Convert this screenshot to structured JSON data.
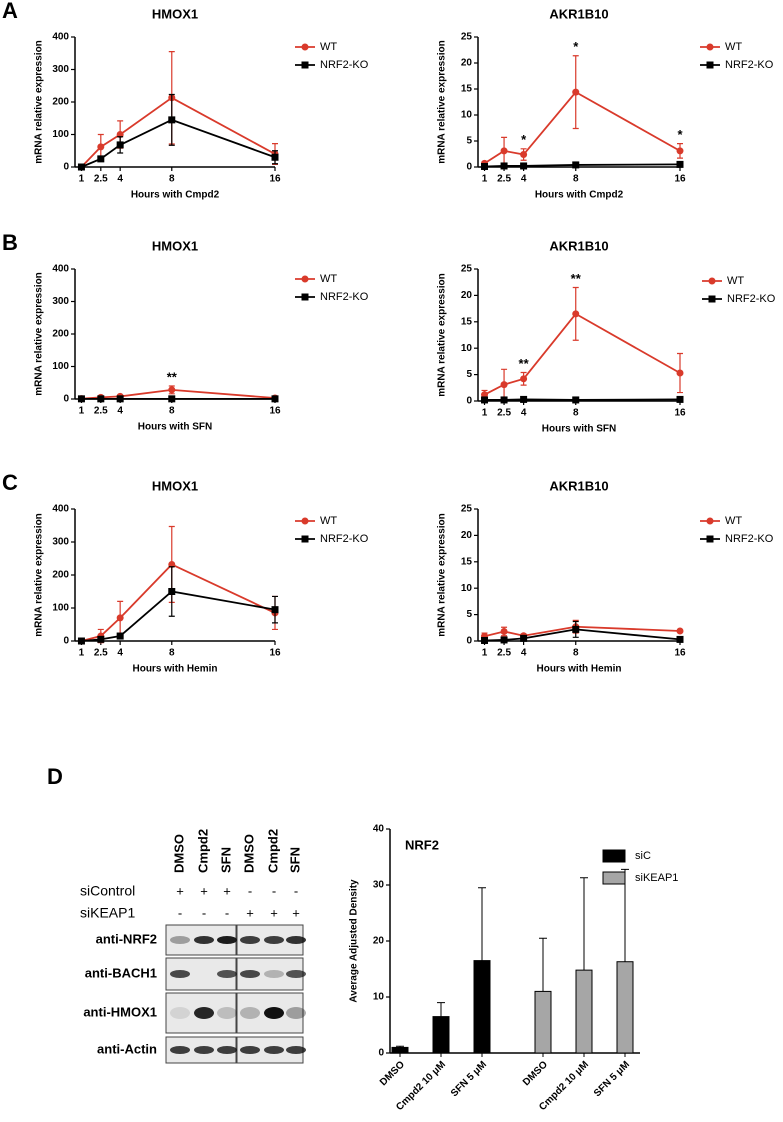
{
  "panel_labels": [
    "A",
    "B",
    "C",
    "D"
  ],
  "blot": {
    "lanes": [
      "DMSO",
      "Cmpd2",
      "SFN",
      "DMSO",
      "Cmpd2",
      "SFN"
    ],
    "conditions": [
      {
        "name": "siControl",
        "signs": [
          "+",
          "+",
          "+",
          "-",
          "-",
          "-"
        ]
      },
      {
        "name": "siKEAP1",
        "signs": [
          "-",
          "-",
          "-",
          "+",
          "+",
          "+"
        ]
      }
    ],
    "antibodies": [
      "anti-NRF2",
      "anti-BACH1",
      "anti-HMOX1",
      "anti-Actin"
    ]
  },
  "chart_data": [
    {
      "type": "line",
      "title": "HMOX1",
      "x_label": "Hours with Cmpd2",
      "y_label": "mRNA relative expression",
      "x": [
        1,
        2.5,
        4,
        8,
        16
      ],
      "xlim": [
        0.5,
        16
      ],
      "xticks": [
        1,
        2.5,
        4,
        8,
        16
      ],
      "ylim": [
        0,
        400
      ],
      "yticks": [
        0,
        100,
        200,
        300,
        400
      ],
      "series": [
        {
          "name": "WT",
          "color": "#d93a2b",
          "marker": "circle",
          "values": [
            0,
            62,
            100,
            213,
            40
          ],
          "errors": [
            5,
            38,
            42,
            142,
            32
          ]
        },
        {
          "name": "NRF2-KO",
          "color": "#000000",
          "marker": "square",
          "values": [
            0,
            25,
            68,
            145,
            30
          ],
          "errors": [
            2,
            5,
            25,
            78,
            20
          ]
        }
      ],
      "annotations": []
    },
    {
      "type": "line",
      "title": "AKR1B10",
      "x_label": "Hours with Cmpd2",
      "y_label": "mRNA relative expression",
      "x": [
        1,
        2.5,
        4,
        8,
        16
      ],
      "xlim": [
        0.5,
        16
      ],
      "xticks": [
        1,
        2.5,
        4,
        8,
        16
      ],
      "ylim": [
        0,
        25
      ],
      "yticks": [
        0,
        5,
        10,
        15,
        20,
        25
      ],
      "series": [
        {
          "name": "WT",
          "color": "#d93a2b",
          "marker": "circle",
          "values": [
            0.7,
            3.1,
            2.4,
            14.4,
            3.1
          ],
          "errors": [
            0.3,
            2.6,
            1.1,
            7,
            1.4
          ]
        },
        {
          "name": "NRF2-KO",
          "color": "#000000",
          "marker": "square",
          "values": [
            0.1,
            0.2,
            0.2,
            0.4,
            0.5
          ],
          "errors": [
            0.05,
            0.1,
            0.1,
            0.2,
            0.2
          ]
        }
      ],
      "annotations": [
        {
          "text": "*",
          "x": 4
        },
        {
          "text": "*",
          "x": 8
        },
        {
          "text": "*",
          "x": 16
        }
      ]
    },
    {
      "type": "line",
      "title": "HMOX1",
      "x_label": "Hours with SFN",
      "y_label": "mRNA relative expression",
      "x": [
        1,
        2.5,
        4,
        8,
        16
      ],
      "xlim": [
        0.5,
        16
      ],
      "xticks": [
        1,
        2.5,
        4,
        8,
        16
      ],
      "ylim": [
        0,
        400
      ],
      "yticks": [
        0,
        100,
        200,
        300,
        400
      ],
      "series": [
        {
          "name": "WT",
          "color": "#d93a2b",
          "marker": "circle",
          "values": [
            1,
            5,
            8,
            28,
            3
          ],
          "errors": [
            1,
            3,
            4,
            12,
            2
          ]
        },
        {
          "name": "NRF2-KO",
          "color": "#000000",
          "marker": "square",
          "values": [
            0.5,
            0.5,
            0.5,
            0.5,
            0.5
          ],
          "errors": [
            0.2,
            0.2,
            0.2,
            0.2,
            0.2
          ]
        }
      ],
      "annotations": [
        {
          "text": "**",
          "x": 8
        }
      ]
    },
    {
      "type": "line",
      "title": "AKR1B10",
      "x_label": "Hours with SFN",
      "y_label": "mRNA relative expression",
      "x": [
        1,
        2.5,
        4,
        8,
        16
      ],
      "xlim": [
        0.5,
        16
      ],
      "xticks": [
        1,
        2.5,
        4,
        8,
        16
      ],
      "ylim": [
        0,
        25
      ],
      "yticks": [
        0,
        5,
        10,
        15,
        20,
        25
      ],
      "series": [
        {
          "name": "WT",
          "color": "#d93a2b",
          "marker": "circle",
          "values": [
            1.2,
            3.1,
            4.2,
            16.5,
            5.3
          ],
          "errors": [
            0.8,
            2.9,
            1.2,
            5,
            3.7
          ]
        },
        {
          "name": "NRF2-KO",
          "color": "#000000",
          "marker": "square",
          "values": [
            0.2,
            0.2,
            0.3,
            0.2,
            0.3
          ],
          "errors": [
            0.1,
            0.1,
            0.1,
            0.1,
            0.1
          ]
        }
      ],
      "annotations": [
        {
          "text": "**",
          "x": 4
        },
        {
          "text": "**",
          "x": 8
        }
      ]
    },
    {
      "type": "line",
      "title": "HMOX1",
      "x_label": "Hours with Hemin",
      "y_label": "mRNA relative expression",
      "x": [
        1,
        2.5,
        4,
        8,
        16
      ],
      "xlim": [
        0.5,
        16
      ],
      "xticks": [
        1,
        2.5,
        4,
        8,
        16
      ],
      "ylim": [
        0,
        400
      ],
      "yticks": [
        0,
        100,
        200,
        300,
        400
      ],
      "series": [
        {
          "name": "WT",
          "color": "#d93a2b",
          "marker": "circle",
          "values": [
            0,
            15,
            70,
            232,
            85
          ],
          "errors": [
            3,
            20,
            50,
            115,
            50
          ]
        },
        {
          "name": "NRF2-KO",
          "color": "#000000",
          "marker": "square",
          "values": [
            0,
            5,
            15,
            150,
            95
          ],
          "errors": [
            2,
            5,
            8,
            75,
            40
          ]
        }
      ],
      "annotations": []
    },
    {
      "type": "line",
      "title": "AKR1B10",
      "x_label": "Hours with Hemin",
      "y_label": "mRNA relative expression",
      "x": [
        1,
        2.5,
        4,
        8,
        16
      ],
      "xlim": [
        0.5,
        16
      ],
      "xticks": [
        1,
        2.5,
        4,
        8,
        16
      ],
      "ylim": [
        0,
        25
      ],
      "yticks": [
        0,
        5,
        10,
        15,
        20,
        25
      ],
      "series": [
        {
          "name": "WT",
          "color": "#d93a2b",
          "marker": "circle",
          "values": [
            0.9,
            1.8,
            1.0,
            2.7,
            1.9
          ],
          "errors": [
            0.6,
            0.8,
            0.3,
            1.2,
            0.2
          ]
        },
        {
          "name": "NRF2-KO",
          "color": "#000000",
          "marker": "square",
          "values": [
            0.1,
            0.2,
            0.5,
            2.2,
            0.3
          ],
          "errors": [
            0.1,
            0.3,
            0.2,
            1.5,
            0.2
          ]
        }
      ],
      "annotations": []
    },
    {
      "type": "bar",
      "title": "NRF2",
      "y_label": "Average Adjusted Density",
      "categories": [
        "DMSO",
        "Cmpd2 10 μM",
        "SFN 5 μM"
      ],
      "ylim": [
        0,
        40
      ],
      "yticks": [
        0,
        10,
        20,
        30,
        40
      ],
      "series": [
        {
          "name": "siC",
          "color": "#000000",
          "values": [
            1,
            6.5,
            16.5
          ],
          "errors": [
            0.2,
            2.5,
            13
          ]
        },
        {
          "name": "siKEAP1",
          "color": "#a6a6a6",
          "values": [
            11,
            14.8,
            16.3
          ],
          "errors": [
            9.5,
            16.5,
            16.5
          ]
        }
      ]
    }
  ]
}
